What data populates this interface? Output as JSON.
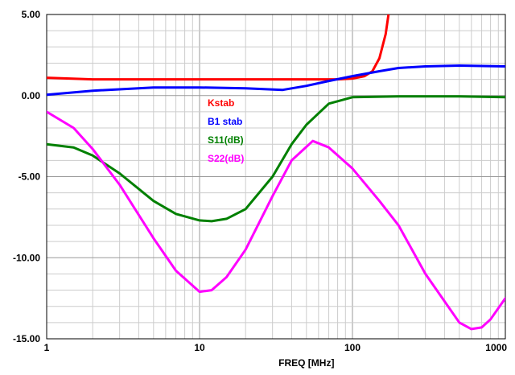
{
  "chart_data": {
    "type": "line",
    "xlabel": "FREQ [MHz]",
    "ylabel": "",
    "x_scale": "log",
    "xlim": [
      1,
      1000
    ],
    "ylim": [
      -15,
      5
    ],
    "grid": true,
    "legend_placement": "center-left inside plot",
    "x_ticks": [
      {
        "value": 1,
        "label": "1"
      },
      {
        "value": 10,
        "label": "10"
      },
      {
        "value": 100,
        "label": "100"
      },
      {
        "value": 1000,
        "label": "1000"
      }
    ],
    "y_ticks": [
      {
        "value": 5,
        "label": "5.00"
      },
      {
        "value": 0,
        "label": "0.00"
      },
      {
        "value": -5,
        "label": "-5.00"
      },
      {
        "value": -10,
        "label": "-10.00"
      },
      {
        "value": -15,
        "label": "-15.00"
      }
    ],
    "series": [
      {
        "name": "Kstab",
        "color": "#ff0000",
        "points": [
          [
            1,
            1.1
          ],
          [
            2,
            1.0
          ],
          [
            5,
            1.0
          ],
          [
            10,
            1.0
          ],
          [
            20,
            1.0
          ],
          [
            50,
            1.0
          ],
          [
            80,
            1.0
          ],
          [
            100,
            1.05
          ],
          [
            120,
            1.2
          ],
          [
            135,
            1.5
          ],
          [
            150,
            2.3
          ],
          [
            165,
            3.8
          ],
          [
            172,
            5.0
          ]
        ]
      },
      {
        "name": "B1 stab",
        "color": "#0000ff",
        "points": [
          [
            1,
            0.05
          ],
          [
            2,
            0.3
          ],
          [
            5,
            0.5
          ],
          [
            10,
            0.5
          ],
          [
            20,
            0.45
          ],
          [
            35,
            0.35
          ],
          [
            50,
            0.6
          ],
          [
            70,
            0.9
          ],
          [
            100,
            1.2
          ],
          [
            150,
            1.5
          ],
          [
            200,
            1.7
          ],
          [
            300,
            1.8
          ],
          [
            500,
            1.85
          ],
          [
            1000,
            1.8
          ]
        ]
      },
      {
        "name": "S11(dB)",
        "color": "#008000",
        "points": [
          [
            1,
            -3.0
          ],
          [
            1.5,
            -3.2
          ],
          [
            2,
            -3.7
          ],
          [
            3,
            -4.8
          ],
          [
            5,
            -6.5
          ],
          [
            7,
            -7.3
          ],
          [
            10,
            -7.7
          ],
          [
            12,
            -7.75
          ],
          [
            15,
            -7.6
          ],
          [
            20,
            -7.0
          ],
          [
            30,
            -5.0
          ],
          [
            40,
            -3.0
          ],
          [
            50,
            -1.8
          ],
          [
            70,
            -0.5
          ],
          [
            100,
            -0.1
          ],
          [
            200,
            -0.05
          ],
          [
            500,
            -0.05
          ],
          [
            1000,
            -0.1
          ]
        ]
      },
      {
        "name": "S22(dB)",
        "color": "#ff00ff",
        "points": [
          [
            1,
            -1.0
          ],
          [
            1.5,
            -2.0
          ],
          [
            2,
            -3.3
          ],
          [
            3,
            -5.5
          ],
          [
            5,
            -8.8
          ],
          [
            7,
            -10.8
          ],
          [
            10,
            -12.1
          ],
          [
            12,
            -12.0
          ],
          [
            15,
            -11.2
          ],
          [
            20,
            -9.5
          ],
          [
            30,
            -6.2
          ],
          [
            40,
            -4.0
          ],
          [
            55,
            -2.8
          ],
          [
            70,
            -3.2
          ],
          [
            100,
            -4.5
          ],
          [
            150,
            -6.5
          ],
          [
            200,
            -8.0
          ],
          [
            300,
            -11.0
          ],
          [
            500,
            -14.0
          ],
          [
            600,
            -14.4
          ],
          [
            700,
            -14.3
          ],
          [
            800,
            -13.8
          ],
          [
            1000,
            -12.5
          ]
        ]
      }
    ]
  }
}
